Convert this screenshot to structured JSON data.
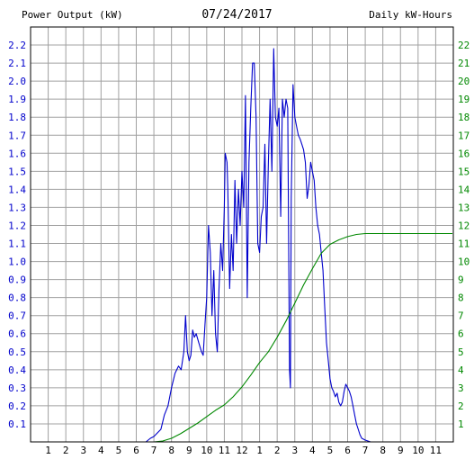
{
  "header": {
    "left_title": "Power Output (kW)",
    "center_title": "07/24/2017",
    "right_title": "Daily kW-Hours"
  },
  "colors": {
    "power": "#0000cc",
    "energy": "#008800",
    "grid": "#a0a0a0",
    "axis": "#000000",
    "background": "#ffffff"
  },
  "chart_data": {
    "type": "line",
    "title": "07/24/2017",
    "x_ticks": [
      "1",
      "2",
      "3",
      "4",
      "5",
      "6",
      "7",
      "8",
      "9",
      "10",
      "11",
      "12",
      "1",
      "2",
      "3",
      "4",
      "5",
      "6",
      "7",
      "8",
      "9",
      "10",
      "11"
    ],
    "x_range_hours": [
      0,
      24
    ],
    "y_left": {
      "label": "Power Output (kW)",
      "range": [
        0,
        2.3
      ],
      "ticks": [
        "0.1",
        "0.2",
        "0.3",
        "0.4",
        "0.5",
        "0.6",
        "0.7",
        "0.8",
        "0.9",
        "1.0",
        "1.1",
        "1.2",
        "1.3",
        "1.4",
        "1.5",
        "1.6",
        "1.7",
        "1.8",
        "1.9",
        "2.0",
        "2.1",
        "2.2"
      ]
    },
    "y_right": {
      "label": "Daily kW-Hours",
      "range": [
        0,
        23
      ],
      "ticks": [
        "1",
        "2",
        "3",
        "4",
        "5",
        "6",
        "7",
        "8",
        "9",
        "10",
        "11",
        "12",
        "13",
        "14",
        "15",
        "16",
        "17",
        "18",
        "19",
        "20",
        "21",
        "22"
      ]
    },
    "grid": true,
    "series": [
      {
        "axis": "left",
        "points": [
          [
            6.55,
            0
          ],
          [
            6.8,
            0.02
          ],
          [
            7.0,
            0.03
          ],
          [
            7.2,
            0.05
          ],
          [
            7.4,
            0.07
          ],
          [
            7.6,
            0.15
          ],
          [
            7.8,
            0.2
          ],
          [
            8.0,
            0.3
          ],
          [
            8.2,
            0.38
          ],
          [
            8.4,
            0.42
          ],
          [
            8.55,
            0.4
          ],
          [
            8.7,
            0.5
          ],
          [
            8.8,
            0.7
          ],
          [
            8.9,
            0.5
          ],
          [
            9.0,
            0.45
          ],
          [
            9.1,
            0.48
          ],
          [
            9.2,
            0.62
          ],
          [
            9.3,
            0.58
          ],
          [
            9.4,
            0.6
          ],
          [
            9.55,
            0.55
          ],
          [
            9.7,
            0.5
          ],
          [
            9.8,
            0.48
          ],
          [
            9.9,
            0.65
          ],
          [
            10.0,
            0.8
          ],
          [
            10.1,
            1.2
          ],
          [
            10.2,
            1.05
          ],
          [
            10.3,
            0.7
          ],
          [
            10.4,
            0.95
          ],
          [
            10.5,
            0.6
          ],
          [
            10.6,
            0.5
          ],
          [
            10.7,
            0.85
          ],
          [
            10.8,
            1.1
          ],
          [
            10.9,
            0.95
          ],
          [
            11.0,
            1.3
          ],
          [
            11.05,
            1.6
          ],
          [
            11.15,
            1.55
          ],
          [
            11.2,
            1.4
          ],
          [
            11.3,
            0.85
          ],
          [
            11.4,
            1.15
          ],
          [
            11.5,
            0.95
          ],
          [
            11.6,
            1.45
          ],
          [
            11.7,
            1.1
          ],
          [
            11.8,
            1.4
          ],
          [
            11.9,
            1.2
          ],
          [
            12.0,
            1.5
          ],
          [
            12.1,
            1.3
          ],
          [
            12.2,
            1.92
          ],
          [
            12.3,
            0.8
          ],
          [
            12.4,
            1.55
          ],
          [
            12.5,
            1.85
          ],
          [
            12.6,
            2.1
          ],
          [
            12.7,
            2.1
          ],
          [
            12.8,
            1.8
          ],
          [
            12.9,
            1.1
          ],
          [
            13.0,
            1.05
          ],
          [
            13.1,
            1.25
          ],
          [
            13.2,
            1.3
          ],
          [
            13.3,
            1.65
          ],
          [
            13.4,
            1.1
          ],
          [
            13.5,
            1.55
          ],
          [
            13.6,
            1.9
          ],
          [
            13.7,
            1.5
          ],
          [
            13.8,
            2.18
          ],
          [
            13.9,
            1.8
          ],
          [
            14.0,
            1.75
          ],
          [
            14.1,
            1.85
          ],
          [
            14.2,
            1.25
          ],
          [
            14.3,
            1.9
          ],
          [
            14.4,
            1.8
          ],
          [
            14.5,
            1.9
          ],
          [
            14.6,
            1.85
          ],
          [
            14.7,
            0.4
          ],
          [
            14.75,
            0.3
          ],
          [
            14.8,
            1.35
          ],
          [
            14.9,
            1.98
          ],
          [
            15.0,
            1.8
          ],
          [
            15.1,
            1.75
          ],
          [
            15.2,
            1.7
          ],
          [
            15.3,
            1.68
          ],
          [
            15.4,
            1.65
          ],
          [
            15.5,
            1.62
          ],
          [
            15.6,
            1.55
          ],
          [
            15.7,
            1.35
          ],
          [
            15.8,
            1.42
          ],
          [
            15.9,
            1.55
          ],
          [
            16.0,
            1.5
          ],
          [
            16.1,
            1.45
          ],
          [
            16.2,
            1.3
          ],
          [
            16.3,
            1.2
          ],
          [
            16.4,
            1.15
          ],
          [
            16.5,
            1.05
          ],
          [
            16.6,
            0.95
          ],
          [
            16.7,
            0.75
          ],
          [
            16.8,
            0.55
          ],
          [
            16.9,
            0.45
          ],
          [
            17.0,
            0.35
          ],
          [
            17.1,
            0.3
          ],
          [
            17.2,
            0.28
          ],
          [
            17.3,
            0.25
          ],
          [
            17.4,
            0.27
          ],
          [
            17.5,
            0.22
          ],
          [
            17.6,
            0.2
          ],
          [
            17.7,
            0.22
          ],
          [
            17.8,
            0.28
          ],
          [
            17.9,
            0.32
          ],
          [
            18.0,
            0.3
          ],
          [
            18.1,
            0.28
          ],
          [
            18.2,
            0.25
          ],
          [
            18.3,
            0.2
          ],
          [
            18.4,
            0.15
          ],
          [
            18.5,
            0.1
          ],
          [
            18.6,
            0.07
          ],
          [
            18.7,
            0.04
          ],
          [
            18.8,
            0.02
          ],
          [
            19.0,
            0.01
          ],
          [
            19.3,
            0
          ]
        ]
      },
      {
        "axis": "right",
        "points": [
          [
            7.0,
            0
          ],
          [
            7.5,
            0.05
          ],
          [
            8.0,
            0.2
          ],
          [
            8.5,
            0.45
          ],
          [
            9.0,
            0.75
          ],
          [
            9.5,
            1.05
          ],
          [
            10.0,
            1.4
          ],
          [
            10.5,
            1.75
          ],
          [
            11.0,
            2.05
          ],
          [
            11.5,
            2.5
          ],
          [
            12.0,
            3.05
          ],
          [
            12.5,
            3.7
          ],
          [
            13.0,
            4.4
          ],
          [
            13.5,
            5.0
          ],
          [
            14.0,
            5.8
          ],
          [
            14.5,
            6.7
          ],
          [
            15.0,
            7.7
          ],
          [
            15.5,
            8.7
          ],
          [
            16.0,
            9.6
          ],
          [
            16.5,
            10.45
          ],
          [
            17.0,
            10.95
          ],
          [
            17.5,
            11.2
          ],
          [
            18.0,
            11.38
          ],
          [
            18.5,
            11.5
          ],
          [
            19.0,
            11.55
          ],
          [
            20.0,
            11.55
          ],
          [
            21.0,
            11.55
          ],
          [
            22.0,
            11.55
          ],
          [
            23.0,
            11.55
          ],
          [
            23.95,
            11.55
          ]
        ]
      }
    ]
  }
}
